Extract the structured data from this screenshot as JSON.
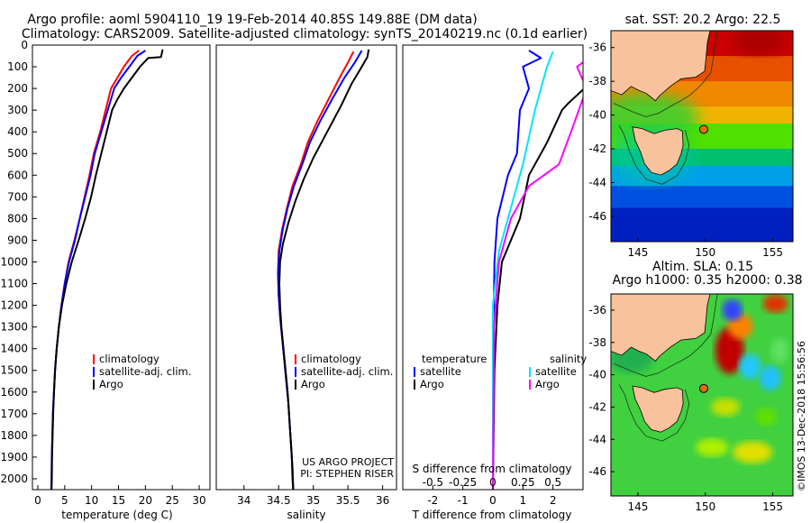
{
  "header": {
    "title_line1": "Argo profile: aoml 5904110_19 19-Feb-2014 40.85S 149.88E (DM data)",
    "title_line2": "Climatology: CARS2009. Satellite-adjusted climatology: synTS_20140219.nc (0.1d earlier)"
  },
  "colors": {
    "climatology": "#ff0000",
    "satellite": "#0000ff",
    "argo": "#000000",
    "sat_salinity": "#00e5ff",
    "argo_salinity": "#ff00ff",
    "land": "#f7c29c"
  },
  "credits": {
    "project": "US ARGO PROJECT",
    "pi": "PI: STEPHEN RISER",
    "imos": "©IMOS 13-Dec-2018 15:56:56"
  },
  "chart_data": [
    {
      "type": "line",
      "name": "temperature-panel",
      "xlabel": "temperature (deg C)",
      "xlim": [
        -1,
        32
      ],
      "ylim": [
        2050,
        0
      ],
      "xticks": [
        0,
        5,
        10,
        15,
        20,
        25,
        30
      ],
      "yticks": [
        0,
        100,
        200,
        300,
        400,
        500,
        600,
        700,
        800,
        900,
        1000,
        1100,
        1200,
        1300,
        1400,
        1500,
        1600,
        1700,
        1800,
        1900,
        2000
      ],
      "legend": [
        "climatology",
        "satellite-adj. clim.",
        "Argo"
      ],
      "series": [
        {
          "name": "climatology",
          "color": "#ff0000",
          "points": [
            [
              18.8,
              25
            ],
            [
              17.5,
              50
            ],
            [
              16.0,
              100
            ],
            [
              14.8,
              150
            ],
            [
              13.6,
              200
            ],
            [
              12.6,
              300
            ],
            [
              11.6,
              400
            ],
            [
              10.4,
              500
            ],
            [
              9.6,
              600
            ],
            [
              8.7,
              700
            ],
            [
              7.8,
              800
            ],
            [
              6.8,
              900
            ],
            [
              5.7,
              1000
            ],
            [
              5.0,
              1100
            ],
            [
              4.4,
              1200
            ],
            [
              3.9,
              1300
            ],
            [
              3.5,
              1400
            ],
            [
              3.2,
              1500
            ],
            [
              3.0,
              1600
            ],
            [
              2.8,
              1700
            ],
            [
              2.7,
              1800
            ],
            [
              2.6,
              1900
            ],
            [
              2.55,
              2000
            ],
            [
              2.5,
              2050
            ]
          ]
        },
        {
          "name": "satellite-adj. clim.",
          "color": "#0000ff",
          "points": [
            [
              20.0,
              25
            ],
            [
              18.5,
              50
            ],
            [
              17.0,
              100
            ],
            [
              15.5,
              150
            ],
            [
              14.2,
              200
            ],
            [
              13.0,
              300
            ],
            [
              11.8,
              400
            ],
            [
              10.6,
              500
            ],
            [
              9.8,
              600
            ],
            [
              8.8,
              700
            ],
            [
              7.8,
              800
            ],
            [
              6.9,
              900
            ],
            [
              5.8,
              1000
            ],
            [
              5.0,
              1100
            ],
            [
              4.4,
              1200
            ],
            [
              3.9,
              1300
            ],
            [
              3.5,
              1400
            ],
            [
              3.2,
              1500
            ],
            [
              3.0,
              1600
            ],
            [
              2.8,
              1700
            ],
            [
              2.7,
              1800
            ],
            [
              2.6,
              1900
            ],
            [
              2.55,
              2000
            ],
            [
              2.5,
              2050
            ]
          ]
        },
        {
          "name": "Argo",
          "color": "#000000",
          "points": [
            [
              23.2,
              20
            ],
            [
              22.9,
              55
            ],
            [
              20.5,
              60
            ],
            [
              19.0,
              100
            ],
            [
              17.5,
              150
            ],
            [
              16.0,
              200
            ],
            [
              14.8,
              250
            ],
            [
              13.8,
              300
            ],
            [
              12.8,
              400
            ],
            [
              11.8,
              500
            ],
            [
              10.8,
              600
            ],
            [
              9.9,
              700
            ],
            [
              8.8,
              800
            ],
            [
              7.6,
              900
            ],
            [
              6.3,
              1000
            ],
            [
              5.3,
              1100
            ],
            [
              4.5,
              1200
            ],
            [
              3.9,
              1300
            ],
            [
              3.5,
              1400
            ],
            [
              3.2,
              1500
            ],
            [
              3.0,
              1600
            ],
            [
              2.85,
              1700
            ],
            [
              2.75,
              1800
            ],
            [
              2.65,
              1900
            ],
            [
              2.6,
              2000
            ],
            [
              2.55,
              2050
            ]
          ]
        }
      ]
    },
    {
      "type": "line",
      "name": "salinity-panel",
      "xlabel": "salinity",
      "xlim": [
        33.6,
        36.2
      ],
      "ylim": [
        2050,
        0
      ],
      "xticks": [
        34,
        34.5,
        35,
        35.5,
        36
      ],
      "legend": [
        "climatology",
        "satellite-adj. clim.",
        "Argo"
      ],
      "series": [
        {
          "name": "climatology",
          "color": "#ff0000",
          "points": [
            [
              35.58,
              30
            ],
            [
              35.5,
              80
            ],
            [
              35.38,
              150
            ],
            [
              35.22,
              250
            ],
            [
              35.06,
              350
            ],
            [
              34.92,
              450
            ],
            [
              34.82,
              550
            ],
            [
              34.7,
              650
            ],
            [
              34.62,
              750
            ],
            [
              34.55,
              850
            ],
            [
              34.5,
              950
            ],
            [
              34.49,
              1050
            ],
            [
              34.5,
              1150
            ],
            [
              34.52,
              1250
            ],
            [
              34.55,
              1350
            ],
            [
              34.58,
              1450
            ],
            [
              34.61,
              1550
            ],
            [
              34.64,
              1650
            ],
            [
              34.66,
              1750
            ],
            [
              34.68,
              1850
            ],
            [
              34.7,
              1950
            ],
            [
              34.71,
              2050
            ]
          ]
        },
        {
          "name": "satellite-adj. clim.",
          "color": "#0000ff",
          "points": [
            [
              35.7,
              25
            ],
            [
              35.6,
              80
            ],
            [
              35.45,
              150
            ],
            [
              35.27,
              250
            ],
            [
              35.1,
              350
            ],
            [
              34.95,
              450
            ],
            [
              34.84,
              550
            ],
            [
              34.72,
              650
            ],
            [
              34.63,
              750
            ],
            [
              34.56,
              850
            ],
            [
              34.51,
              950
            ],
            [
              34.49,
              1050
            ],
            [
              34.5,
              1150
            ],
            [
              34.52,
              1250
            ],
            [
              34.55,
              1350
            ],
            [
              34.58,
              1450
            ],
            [
              34.61,
              1550
            ],
            [
              34.64,
              1650
            ],
            [
              34.66,
              1750
            ],
            [
              34.68,
              1850
            ],
            [
              34.7,
              1950
            ],
            [
              34.71,
              2050
            ]
          ]
        },
        {
          "name": "Argo",
          "color": "#000000",
          "points": [
            [
              35.8,
              20
            ],
            [
              35.78,
              55
            ],
            [
              35.7,
              100
            ],
            [
              35.55,
              180
            ],
            [
              35.4,
              280
            ],
            [
              35.2,
              400
            ],
            [
              35.0,
              520
            ],
            [
              34.86,
              620
            ],
            [
              34.74,
              720
            ],
            [
              34.64,
              820
            ],
            [
              34.56,
              920
            ],
            [
              34.52,
              1000
            ],
            [
              34.51,
              1100
            ],
            [
              34.52,
              1200
            ],
            [
              34.54,
              1300
            ],
            [
              34.57,
              1400
            ],
            [
              34.6,
              1500
            ],
            [
              34.63,
              1600
            ],
            [
              34.65,
              1700
            ],
            [
              34.67,
              1800
            ],
            [
              34.69,
              1900
            ],
            [
              34.7,
              2000
            ],
            [
              34.71,
              2050
            ]
          ]
        }
      ]
    },
    {
      "type": "line",
      "name": "difference-panel",
      "xlabel": "T difference from climatology",
      "xlabel2": "S difference from climatology",
      "xlim": [
        -3,
        3
      ],
      "x2lim": [
        -0.75,
        0.75
      ],
      "ylim": [
        2050,
        0
      ],
      "xticks": [
        -2,
        -1,
        0,
        1,
        2
      ],
      "x2ticks": [
        "-0.5",
        "-0.25",
        "0",
        "0.25",
        "0.5"
      ],
      "legend_left_title": "temperature",
      "legend_right_title": "salinity",
      "legend": [
        "satellite",
        "Argo",
        "satellite",
        "Argo"
      ],
      "series": [
        {
          "name": "satellite",
          "color": "#0000ff",
          "points": [
            [
              1.2,
              25
            ],
            [
              1.6,
              60
            ],
            [
              1.0,
              100
            ],
            [
              1.2,
              200
            ],
            [
              0.9,
              300
            ],
            [
              0.8,
              500
            ],
            [
              0.5,
              600
            ],
            [
              0.15,
              800
            ],
            [
              0.05,
              1000
            ],
            [
              0.02,
              1300
            ],
            [
              0.0,
              1600
            ],
            [
              0.0,
              2050
            ]
          ]
        },
        {
          "name": "Argo",
          "color": "#000000",
          "points": [
            [
              4.4,
              25
            ],
            [
              2.5,
              270
            ],
            [
              2.3,
              300
            ],
            [
              1.8,
              450
            ],
            [
              1.2,
              600
            ],
            [
              0.9,
              800
            ],
            [
              0.6,
              900
            ],
            [
              0.3,
              1000
            ],
            [
              0.15,
              1200
            ],
            [
              0.05,
              1500
            ],
            [
              0.0,
              2050
            ]
          ]
        },
        {
          "name": "satellite",
          "color": "#00e5ff",
          "points": [
            [
              0.5,
              30
            ],
            [
              0.45,
              100
            ],
            [
              0.35,
              300
            ],
            [
              0.25,
              550
            ],
            [
              0.15,
              750
            ],
            [
              0.05,
              950
            ],
            [
              0.0,
              1200
            ],
            [
              0.0,
              2050
            ]
          ]
        },
        {
          "name": "Argo",
          "color": "#ff00ff",
          "points": [
            [
              0.85,
              40
            ],
            [
              0.7,
              100
            ],
            [
              0.78,
              200
            ],
            [
              0.65,
              400
            ],
            [
              0.55,
              550
            ],
            [
              0.3,
              650
            ],
            [
              0.15,
              800
            ],
            [
              0.05,
              1000
            ],
            [
              0.01,
              1300
            ],
            [
              0.0,
              2050
            ]
          ]
        }
      ]
    },
    {
      "type": "heatmap",
      "name": "sst-map",
      "title": "sat. SST: 20.2 Argo: 22.5",
      "xlim": [
        143,
        156.5
      ],
      "ylim": [
        -47.5,
        -35
      ],
      "xticks": [
        145,
        150,
        155
      ],
      "yticks": [
        -36,
        -38,
        -40,
        -42,
        -44,
        -46
      ],
      "argo_location": [
        149.88,
        -40.85
      ]
    },
    {
      "type": "heatmap",
      "name": "sla-map",
      "title": "Altim. SLA: 0.15",
      "subtitle": "Argo h1000: 0.35 h2000: 0.38",
      "xlim": [
        143,
        156.5
      ],
      "ylim": [
        -47.5,
        -35
      ],
      "xticks": [
        145,
        150,
        155
      ],
      "yticks": [
        -36,
        -38,
        -40,
        -42,
        -44,
        -46
      ],
      "argo_location": [
        149.88,
        -40.85
      ]
    }
  ]
}
